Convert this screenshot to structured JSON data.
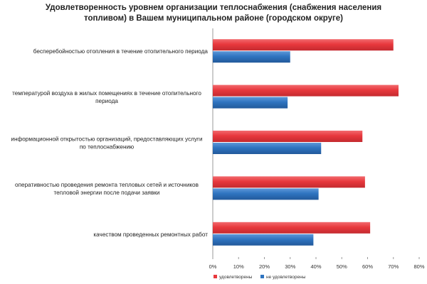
{
  "chart_data": {
    "type": "bar",
    "orientation": "horizontal",
    "title_lines": [
      "Удовлетворенность уровнем организации теплоснабжения (снабжения населения",
      "топливом) в Вашем муниципальном районе (городском округе)"
    ],
    "categories": [
      [
        "бесперебойностью отопления в течение отопительного периода"
      ],
      [
        "температурой воздуха в жилых помещениях в течение отопительного",
        "периода"
      ],
      [
        "информационной открытостью организаций, предоставляющих услуги",
        "по теплоснабжению"
      ],
      [
        "оперативностью проведения ремонта тепловых сетей и источников",
        "тепловой энергии после подачи заявки"
      ],
      [
        "качеством проведенных ремонтных работ"
      ]
    ],
    "series": [
      {
        "name": "удовлетворены",
        "color": "#e8383d",
        "values": [
          70,
          72,
          58,
          59,
          61
        ]
      },
      {
        "name": "не удовлетворены",
        "color": "#2f74c0",
        "values": [
          30,
          29,
          42,
          41,
          39
        ]
      }
    ],
    "xlim": [
      0,
      80
    ],
    "xticks": [
      "0%",
      "10%",
      "20%",
      "30%",
      "40%",
      "50%",
      "60%",
      "70%",
      "80%"
    ],
    "grid": false,
    "legend_position": "bottom"
  }
}
